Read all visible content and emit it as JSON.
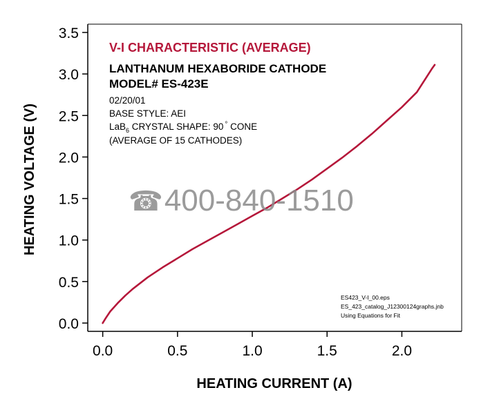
{
  "chart_data": {
    "type": "line",
    "xlabel": "HEATING CURRENT (A)",
    "ylabel": "HEATING VOLTAGE (V)",
    "xlim": [
      -0.1,
      2.4
    ],
    "ylim": [
      -0.1,
      3.6
    ],
    "x_ticks": [
      "0.0",
      "0.5",
      "1.0",
      "1.5",
      "2.0"
    ],
    "y_ticks": [
      "0.0",
      "0.5",
      "1.0",
      "1.5",
      "2.0",
      "2.5",
      "3.0",
      "3.5"
    ],
    "annotations": {
      "title": "V-I CHARACTERISTIC  (AVERAGE)",
      "subtitle_line1": "LANTHANUM HEXABORIDE CATHODE",
      "subtitle_line2": "MODEL# ES-423E",
      "date": "02/20/01",
      "base_style": "BASE STYLE: AEI",
      "crystal_prefix": "LaB",
      "crystal_subscript": "6",
      "crystal_suffix": " CRYSTAL SHAPE:  90",
      "crystal_degree": "°",
      "crystal_cone": " CONE",
      "average_note": "(AVERAGE OF 15 CATHODES)",
      "file_line1": "ES423_V-I_00.eps",
      "file_line2": "ES_423_catalog_J12300124graphs.jnb",
      "file_line3": "Using Equations for Fit"
    },
    "series": [
      {
        "color": "#b5173a",
        "x": [
          0.0,
          0.02,
          0.05,
          0.1,
          0.15,
          0.2,
          0.3,
          0.4,
          0.5,
          0.6,
          0.7,
          0.8,
          0.9,
          1.0,
          1.1,
          1.2,
          1.3,
          1.4,
          1.5,
          1.6,
          1.7,
          1.8,
          1.9,
          2.0,
          2.1,
          2.2,
          2.22
        ],
        "y": [
          0.0,
          0.06,
          0.14,
          0.24,
          0.33,
          0.41,
          0.55,
          0.67,
          0.78,
          0.89,
          0.99,
          1.09,
          1.19,
          1.29,
          1.39,
          1.5,
          1.61,
          1.73,
          1.86,
          1.99,
          2.13,
          2.28,
          2.44,
          2.6,
          2.78,
          3.06,
          3.11
        ]
      }
    ],
    "grid": false
  },
  "watermark": {
    "phone_icon": "☎",
    "text": "400-840-1510"
  }
}
